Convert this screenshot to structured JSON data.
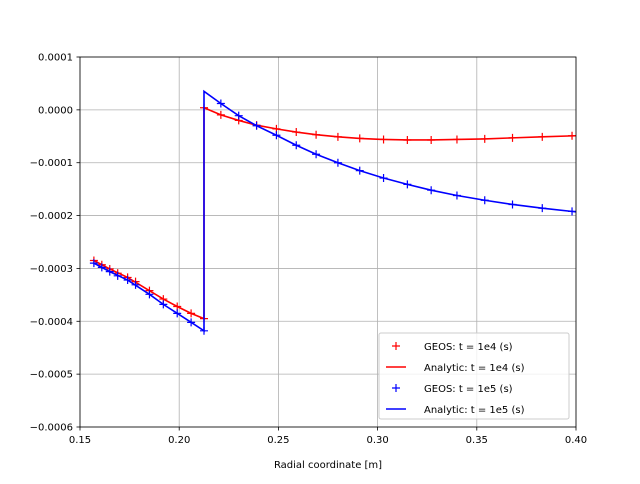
{
  "chart_data": {
    "type": "line",
    "title": "",
    "xlabel": "Radial coordinate [m]",
    "ylabel": "",
    "xlim": [
      0.15,
      0.4
    ],
    "ylim": [
      -0.0006,
      0.0001
    ],
    "xticks": [
      "0.15",
      "0.20",
      "0.25",
      "0.30",
      "0.35",
      "0.40"
    ],
    "yticks": [
      "0.0001",
      "0.0000",
      "−0.0001",
      "−0.0002",
      "−0.0003",
      "−0.0004",
      "−0.0005",
      "−0.0006"
    ],
    "grid": true,
    "legend_position": "lower right",
    "series": [
      {
        "name": "GEOS: t = 1e4 (s)",
        "style": "markers",
        "marker": "+",
        "color": "#ff0000",
        "x": [
          0.157,
          0.161,
          0.165,
          0.169,
          0.174,
          0.178,
          0.185,
          0.192,
          0.199,
          0.206,
          0.2125,
          0.2125,
          0.221,
          0.23,
          0.239,
          0.249,
          0.259,
          0.269,
          0.28,
          0.291,
          0.303,
          0.315,
          0.327,
          0.34,
          0.354,
          0.368,
          0.383,
          0.398
        ],
        "y": [
          -0.000285,
          -0.000293,
          -0.000301,
          -0.000309,
          -0.000317,
          -0.000325,
          -0.000342,
          -0.000358,
          -0.000372,
          -0.000385,
          -0.000395,
          4e-06,
          -9.5e-06,
          -2e-05,
          -2.9e-05,
          -3.6e-05,
          -4.2e-05,
          -4.7e-05,
          -5.1e-05,
          -5.4e-05,
          -5.6e-05,
          -5.7e-05,
          -5.7e-05,
          -5.6e-05,
          -5.5e-05,
          -5.3e-05,
          -5.1e-05,
          -4.9e-05
        ]
      },
      {
        "name": "Analytic: t = 1e4 (s)",
        "style": "line",
        "color": "#ff0000",
        "x": [
          0.157,
          0.165,
          0.174,
          0.185,
          0.192,
          0.199,
          0.206,
          0.2125,
          0.2125,
          0.221,
          0.23,
          0.239,
          0.249,
          0.259,
          0.269,
          0.28,
          0.291,
          0.303,
          0.315,
          0.327,
          0.34,
          0.354,
          0.368,
          0.383,
          0.4
        ],
        "y": [
          -0.000285,
          -0.000301,
          -0.000317,
          -0.000342,
          -0.000358,
          -0.000372,
          -0.000385,
          -0.000395,
          4e-06,
          -9.5e-06,
          -2e-05,
          -2.9e-05,
          -3.6e-05,
          -4.2e-05,
          -4.7e-05,
          -5.1e-05,
          -5.4e-05,
          -5.6e-05,
          -5.7e-05,
          -5.7e-05,
          -5.6e-05,
          -5.5e-05,
          -5.3e-05,
          -5.1e-05,
          -4.9e-05
        ]
      },
      {
        "name": "GEOS: t = 1e5 (s)",
        "style": "markers",
        "marker": "+",
        "color": "#0000ff",
        "x": [
          0.157,
          0.161,
          0.165,
          0.169,
          0.174,
          0.178,
          0.185,
          0.192,
          0.199,
          0.206,
          0.2125,
          0.221,
          0.23,
          0.239,
          0.249,
          0.259,
          0.269,
          0.28,
          0.291,
          0.303,
          0.315,
          0.327,
          0.34,
          0.354,
          0.368,
          0.383,
          0.398
        ],
        "y": [
          -0.00029,
          -0.000298,
          -0.000306,
          -0.000314,
          -0.000322,
          -0.000331,
          -0.000349,
          -0.000368,
          -0.000385,
          -0.000402,
          -0.000418,
          1.2e-05,
          -1.1e-05,
          -3e-05,
          -4.8e-05,
          -6.7e-05,
          -8.4e-05,
          -0.0001,
          -0.000115,
          -0.000129,
          -0.000141,
          -0.000152,
          -0.000162,
          -0.000171,
          -0.000179,
          -0.000186,
          -0.000192
        ]
      },
      {
        "name": "Analytic: t = 1e5 (s)",
        "style": "line",
        "color": "#0000ff",
        "x": [
          0.157,
          0.165,
          0.174,
          0.185,
          0.192,
          0.199,
          0.206,
          0.2125,
          0.2125,
          0.221,
          0.23,
          0.239,
          0.249,
          0.259,
          0.269,
          0.28,
          0.291,
          0.303,
          0.315,
          0.327,
          0.34,
          0.354,
          0.368,
          0.383,
          0.4
        ],
        "y": [
          -0.00029,
          -0.000306,
          -0.000322,
          -0.000349,
          -0.000368,
          -0.000385,
          -0.000402,
          -0.000418,
          3.5e-05,
          1.2e-05,
          -1.1e-05,
          -3e-05,
          -4.8e-05,
          -6.7e-05,
          -8.4e-05,
          -0.0001,
          -0.000115,
          -0.000129,
          -0.000141,
          -0.000152,
          -0.000162,
          -0.000171,
          -0.000179,
          -0.000186,
          -0.000193
        ]
      }
    ]
  }
}
